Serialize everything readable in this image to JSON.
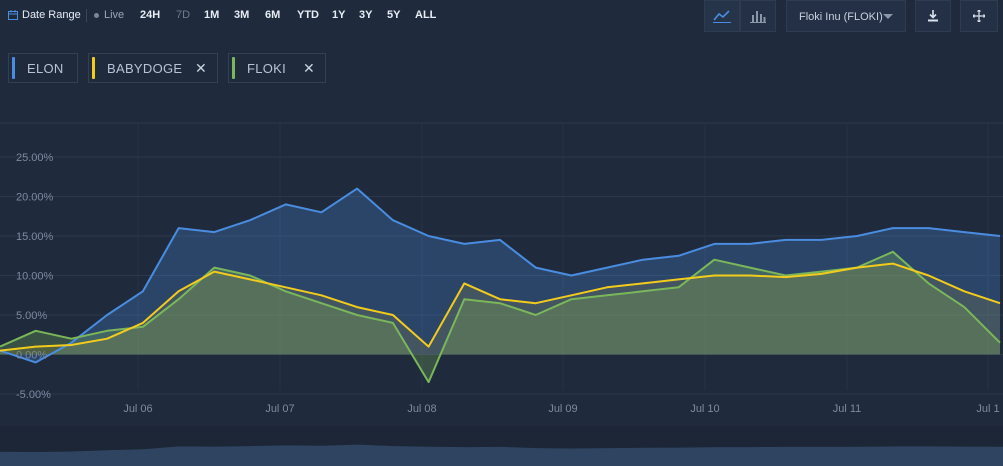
{
  "toolbar": {
    "date_range_label": "Date Range",
    "live_label": "Live",
    "ranges": [
      {
        "label": "24H",
        "dim": false
      },
      {
        "label": "7D",
        "dim": true
      },
      {
        "label": "1M",
        "dim": false
      },
      {
        "label": "3M",
        "dim": false
      },
      {
        "label": "6M",
        "dim": false
      },
      {
        "label": "YTD",
        "dim": false
      },
      {
        "label": "1Y",
        "dim": false
      },
      {
        "label": "3Y",
        "dim": false
      },
      {
        "label": "5Y",
        "dim": false
      },
      {
        "label": "ALL",
        "dim": false
      }
    ],
    "coin_selector_value": "Floki Inu (FLOKI)",
    "icons": [
      "line-chart-icon",
      "bar-chart-icon",
      "download-icon",
      "move-icon"
    ]
  },
  "legend": [
    {
      "label": "ELON",
      "color": "#4a8de0",
      "removable": false
    },
    {
      "label": "BABYDOGE",
      "color": "#f2cb1d",
      "removable": true
    },
    {
      "label": "FLOKI",
      "color": "#7bb75a",
      "removable": true
    }
  ],
  "chart_data": {
    "type": "area",
    "y_unit": "%",
    "ylim": [
      -5,
      25
    ],
    "y_ticks": [
      "25.00%",
      "20.00%",
      "15.00%",
      "10.00%",
      "5.00%",
      "0.00%",
      "-5.00%"
    ],
    "x_ticks": [
      "Jul 06",
      "Jul 07",
      "Jul 08",
      "Jul 09",
      "Jul 10",
      "Jul 11",
      "Jul 1"
    ],
    "x_range": [
      "Jul 05",
      "Jul 12"
    ],
    "grid": true,
    "legend_position": "top-left",
    "series": [
      {
        "name": "ELON",
        "color": "#4a8de0",
        "x": [
          "Jul 05 00:00",
          "Jul 05 06:00",
          "Jul 05 12:00",
          "Jul 05 18:00",
          "Jul 06 00:00",
          "Jul 06 06:00",
          "Jul 06 12:00",
          "Jul 06 18:00",
          "Jul 07 00:00",
          "Jul 07 06:00",
          "Jul 07 12:00",
          "Jul 07 18:00",
          "Jul 08 00:00",
          "Jul 08 06:00",
          "Jul 08 12:00",
          "Jul 08 18:00",
          "Jul 09 00:00",
          "Jul 09 06:00",
          "Jul 09 12:00",
          "Jul 09 18:00",
          "Jul 10 00:00",
          "Jul 10 06:00",
          "Jul 10 12:00",
          "Jul 10 18:00",
          "Jul 11 00:00",
          "Jul 11 06:00",
          "Jul 11 12:00",
          "Jul 11 18:00",
          "Jul 12 00:00"
        ],
        "values": [
          0.5,
          -1.0,
          1.5,
          5.0,
          8.0,
          16.0,
          15.5,
          17.0,
          19.0,
          18.0,
          21.0,
          17.0,
          15.0,
          14.0,
          14.5,
          11.0,
          10.0,
          11.0,
          12.0,
          12.5,
          14.0,
          14.0,
          14.5,
          14.5,
          15.0,
          16.0,
          16.0,
          15.5,
          15.0
        ]
      },
      {
        "name": "BABYDOGE",
        "color": "#f2cb1d",
        "x": [
          "Jul 05 00:00",
          "Jul 05 06:00",
          "Jul 05 12:00",
          "Jul 05 18:00",
          "Jul 06 00:00",
          "Jul 06 06:00",
          "Jul 06 12:00",
          "Jul 06 18:00",
          "Jul 07 00:00",
          "Jul 07 06:00",
          "Jul 07 12:00",
          "Jul 07 18:00",
          "Jul 08 00:00",
          "Jul 08 06:00",
          "Jul 08 12:00",
          "Jul 08 18:00",
          "Jul 09 00:00",
          "Jul 09 06:00",
          "Jul 09 12:00",
          "Jul 09 18:00",
          "Jul 10 00:00",
          "Jul 10 06:00",
          "Jul 10 12:00",
          "Jul 10 18:00",
          "Jul 11 00:00",
          "Jul 11 06:00",
          "Jul 11 12:00",
          "Jul 11 18:00",
          "Jul 12 00:00"
        ],
        "values": [
          0.5,
          1.0,
          1.2,
          2.0,
          4.0,
          8.0,
          10.5,
          9.5,
          8.5,
          7.5,
          6.0,
          5.0,
          1.0,
          9.0,
          7.0,
          6.5,
          7.5,
          8.5,
          9.0,
          9.5,
          10.0,
          10.0,
          9.8,
          10.2,
          11.0,
          11.5,
          10.0,
          8.0,
          6.5
        ]
      },
      {
        "name": "FLOKI",
        "color": "#7bb75a",
        "x": [
          "Jul 05 00:00",
          "Jul 05 06:00",
          "Jul 05 12:00",
          "Jul 05 18:00",
          "Jul 06 00:00",
          "Jul 06 06:00",
          "Jul 06 12:00",
          "Jul 06 18:00",
          "Jul 07 00:00",
          "Jul 07 06:00",
          "Jul 07 12:00",
          "Jul 07 18:00",
          "Jul 08 00:00",
          "Jul 08 06:00",
          "Jul 08 12:00",
          "Jul 08 18:00",
          "Jul 09 00:00",
          "Jul 09 06:00",
          "Jul 09 12:00",
          "Jul 09 18:00",
          "Jul 10 00:00",
          "Jul 10 06:00",
          "Jul 10 12:00",
          "Jul 10 18:00",
          "Jul 11 00:00",
          "Jul 11 06:00",
          "Jul 11 12:00",
          "Jul 11 18:00",
          "Jul 12 00:00"
        ],
        "values": [
          1.0,
          3.0,
          2.0,
          3.0,
          3.5,
          7.0,
          11.0,
          10.0,
          8.0,
          6.5,
          5.0,
          4.0,
          -3.5,
          7.0,
          6.5,
          5.0,
          7.0,
          7.5,
          8.0,
          8.5,
          12.0,
          11.0,
          10.0,
          10.5,
          11.0,
          13.0,
          9.0,
          6.0,
          1.5
        ]
      }
    ],
    "navigator": true
  }
}
